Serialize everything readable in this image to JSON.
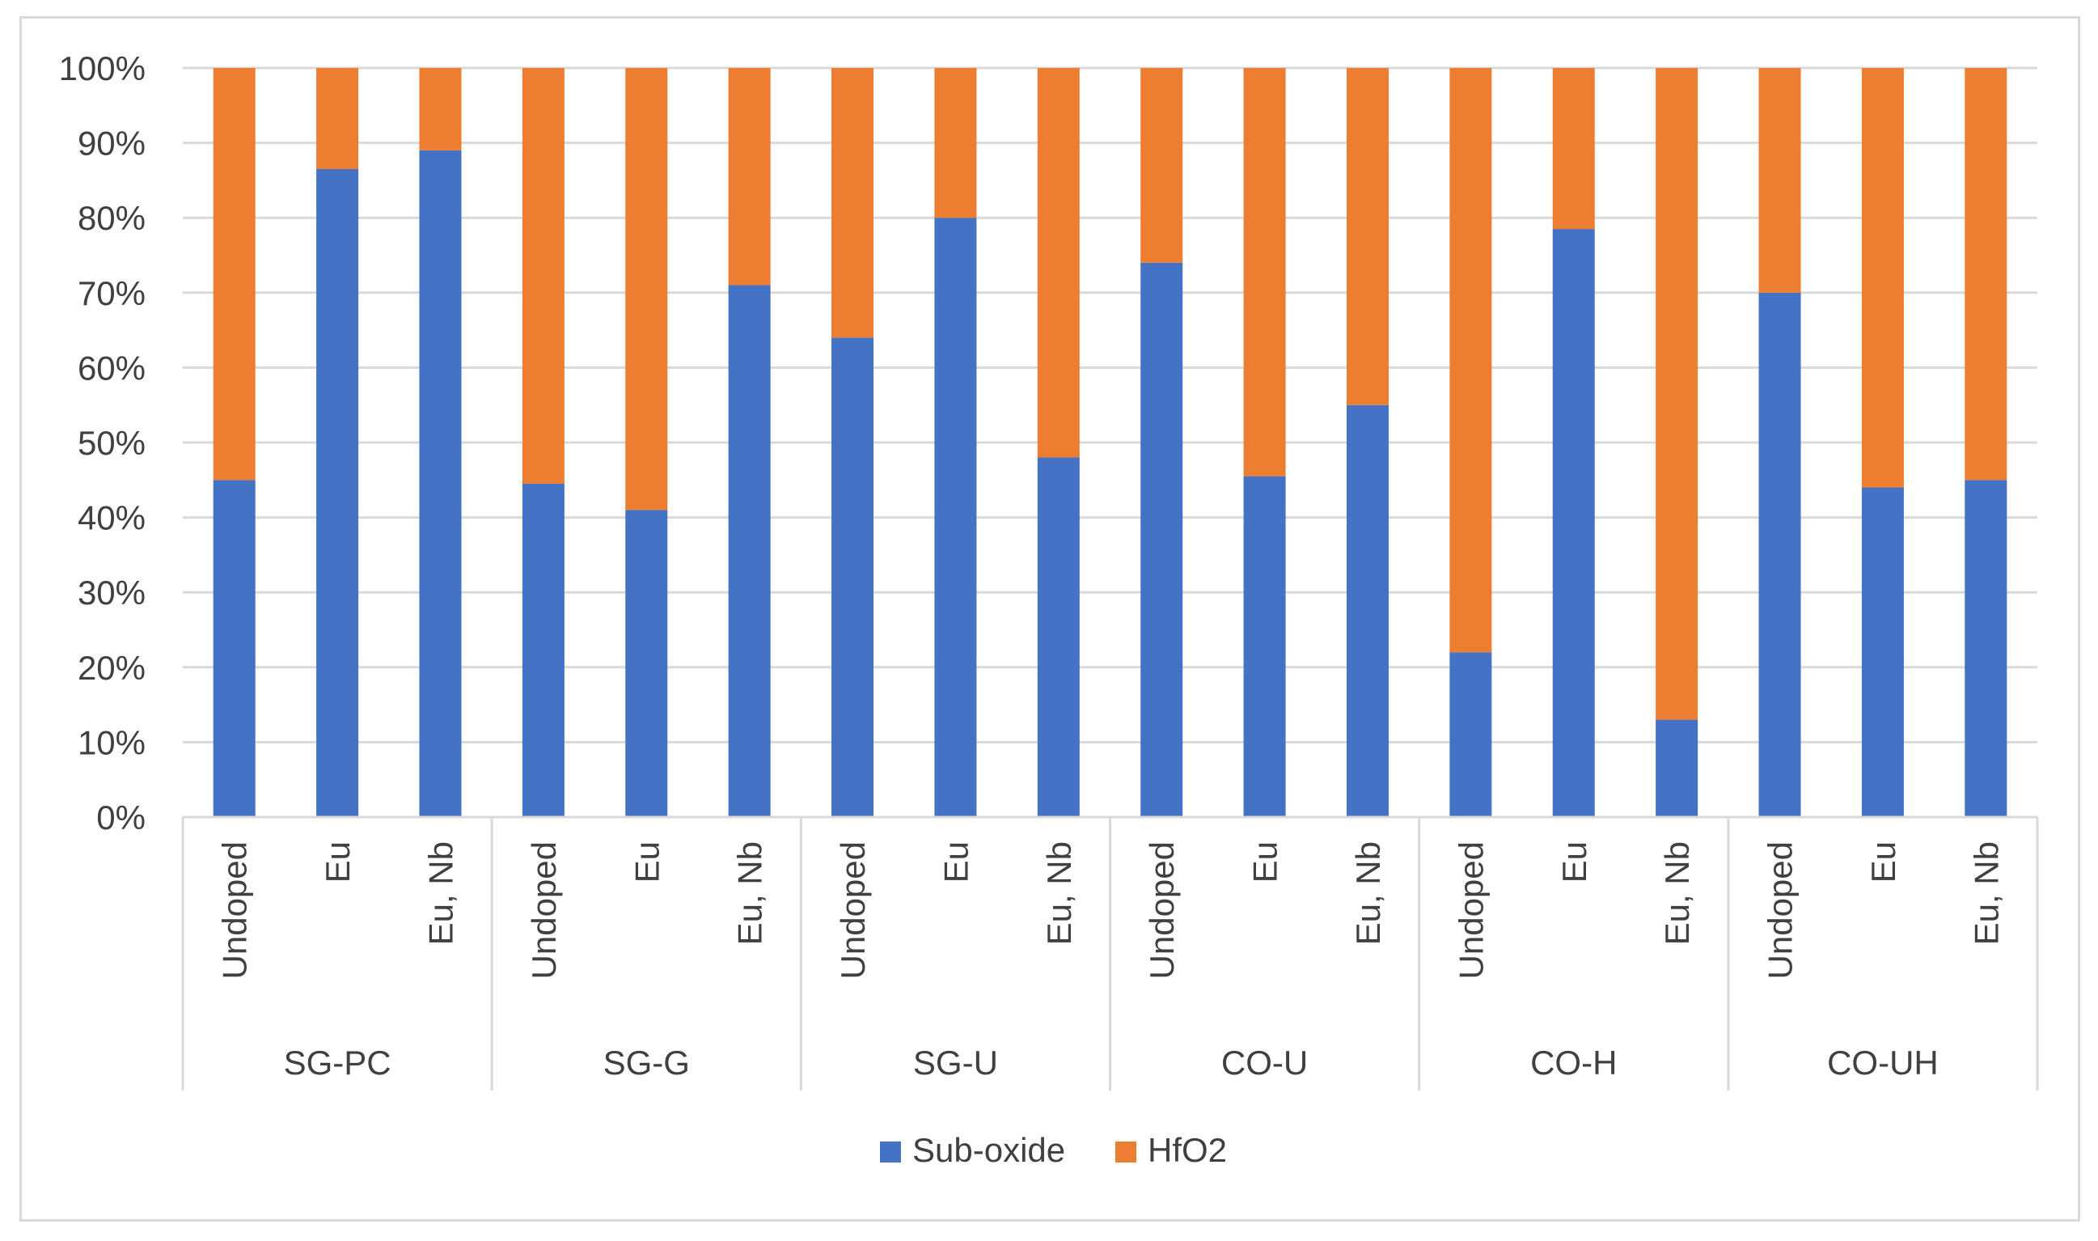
{
  "chart_data": {
    "type": "bar",
    "stacked": true,
    "percent": true,
    "title": "",
    "xlabel": "",
    "ylabel": "",
    "ylim": [
      0,
      100
    ],
    "y_ticks": [
      "0%",
      "10%",
      "20%",
      "30%",
      "40%",
      "50%",
      "60%",
      "70%",
      "80%",
      "90%",
      "100%"
    ],
    "grid": true,
    "legend_position": "bottom",
    "groups": [
      {
        "name": "SG-PC",
        "categories": [
          "Undoped",
          "Eu",
          "Eu, Nb"
        ]
      },
      {
        "name": "SG-G",
        "categories": [
          "Undoped",
          "Eu",
          "Eu, Nb"
        ]
      },
      {
        "name": "SG-U",
        "categories": [
          "Undoped",
          "Eu",
          "Eu, Nb"
        ]
      },
      {
        "name": "CO-U",
        "categories": [
          "Undoped",
          "Eu",
          "Eu, Nb"
        ]
      },
      {
        "name": "CO-H",
        "categories": [
          "Undoped",
          "Eu",
          "Eu, Nb"
        ]
      },
      {
        "name": "CO-UH",
        "categories": [
          "Undoped",
          "Eu",
          "Eu, Nb"
        ]
      }
    ],
    "series": [
      {
        "name": "Sub-oxide",
        "color": "#4472C4",
        "values": [
          45,
          86.5,
          89,
          44.5,
          41,
          71,
          64,
          80,
          48,
          74,
          45.5,
          55,
          22,
          78.5,
          13,
          70,
          44,
          45
        ]
      },
      {
        "name": "HfO2",
        "color": "#ED7D31",
        "values": [
          55,
          13.5,
          11,
          55.5,
          59,
          29,
          36,
          20,
          52,
          26,
          54.5,
          45,
          78,
          21.5,
          87,
          30,
          56,
          55
        ]
      }
    ]
  }
}
